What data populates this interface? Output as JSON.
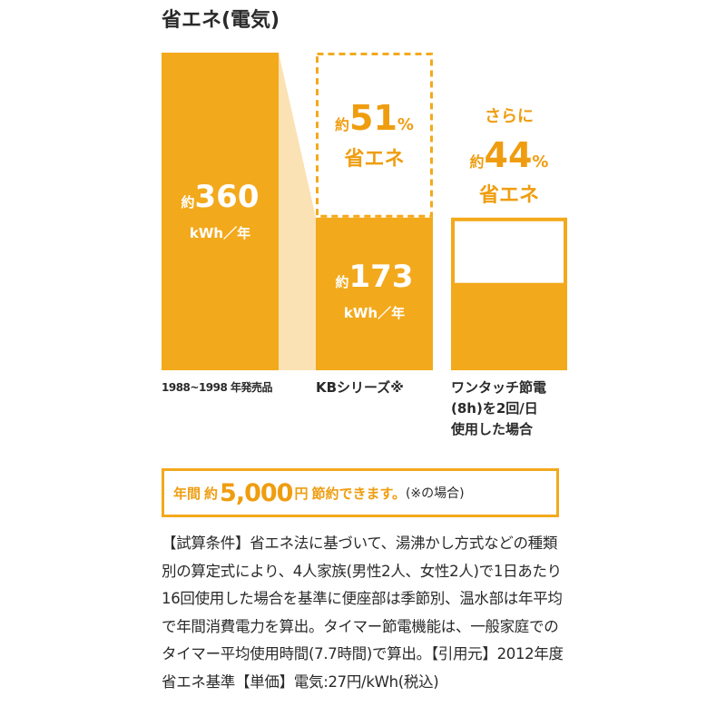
{
  "chart_data": {
    "type": "bar",
    "title": "省エネ(電気)",
    "xlabel": "",
    "ylabel": "",
    "ylim": [
      0,
      360
    ],
    "grid": false,
    "legend": "none",
    "categories": [
      "1988~1998 年発売品",
      "KBシリーズ※",
      "ワンタッチ節電\n(8h)を2回/日\n使用した場合"
    ],
    "values": [
      360,
      173,
      97
    ],
    "bar_fill_color": "#f3a91c",
    "connector_color": "#fbe2b4",
    "annotations": {
      "bar1": {
        "prefix": "約",
        "number": "360",
        "unit": "kWh／年"
      },
      "bar2": {
        "prefix": "約",
        "number": "173",
        "unit": "kWh／年"
      },
      "saving1": {
        "prefix": "約",
        "number": "51",
        "percent": "%",
        "text": "省エネ"
      },
      "saving2": {
        "pre": "さらに",
        "prefix": "約",
        "number": "44",
        "percent": "%",
        "text": "省エネ"
      }
    }
  },
  "savings_box": {
    "label": "年間",
    "prefix": "約",
    "amount": "5,000",
    "unit": "円",
    "text": "節約できます。",
    "note": "(※の場合)"
  },
  "conditions_text": "【試算条件】省エネ法に基づいて、湯沸かし方式などの種類別の算定式により、4人家族(男性2人、女性2人)で1日あたり16回使用した場合を基準に便座部は季節別、温水部は年平均で年間消費電力を算出。タイマー節電機能は、一般家庭でのタイマー平均使用時間(7.7時間)で算出。【引用元】2012年度省エネ基準【単価】電気:27円/kWh(税込)",
  "colors": {
    "accent": "#f3a91c",
    "accent_text": "#ef9d10",
    "text": "#2a2a2a"
  }
}
